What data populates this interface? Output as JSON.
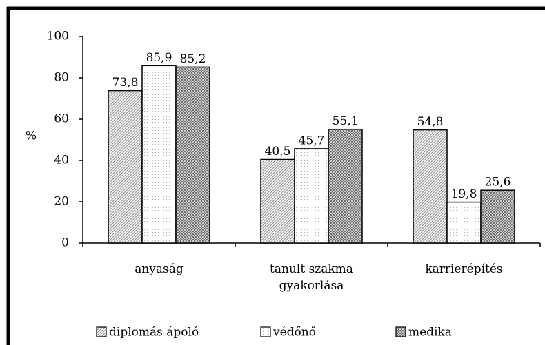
{
  "chart_data": {
    "type": "bar",
    "y_label": "%",
    "categories": [
      "anyaság",
      "tanult szakma gyakorlása",
      "karrierépítés"
    ],
    "series": [
      {
        "name": "diplomás ápoló",
        "color": "#9a9a9a",
        "pattern": "diagonal",
        "values": [
          73.8,
          40.5,
          54.8
        ],
        "value_labels": [
          "73,8",
          "40,5",
          "54,8"
        ]
      },
      {
        "name": "védőnő",
        "color": "#b0b0b0",
        "pattern": "dots",
        "values": [
          85.9,
          45.7,
          19.8
        ],
        "value_labels": [
          "85,9",
          "45,7",
          "19,8"
        ]
      },
      {
        "name": "medika",
        "color": "#6e6e6e",
        "pattern": "crosshatch",
        "values": [
          85.2,
          55.1,
          25.6
        ],
        "value_labels": [
          "85,2",
          "55,1",
          "25,6"
        ]
      }
    ],
    "ylim": [
      0,
      100
    ],
    "yticks": [
      0,
      20,
      40,
      60,
      80,
      100
    ],
    "grid": false,
    "legend": "bottom"
  }
}
